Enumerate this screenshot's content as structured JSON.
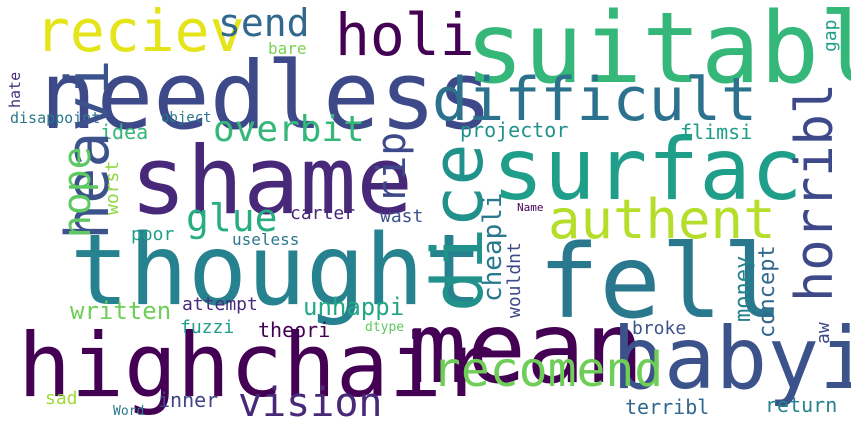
{
  "words": [
    {
      "text": "needless",
      "color": "#3e4989"
    },
    {
      "text": "highchair",
      "color": "#440154"
    },
    {
      "text": "thought",
      "color": "#26828e"
    },
    {
      "text": "suitabl",
      "color": "#35b779"
    },
    {
      "text": "mean",
      "color": "#440154"
    },
    {
      "text": "fell",
      "color": "#2a788e"
    },
    {
      "text": "shame",
      "color": "#482878"
    },
    {
      "text": "surfac",
      "color": "#1f9e89"
    },
    {
      "text": "babyi",
      "color": "#3b528b"
    },
    {
      "text": "difficult",
      "color": "#2c728e"
    },
    {
      "text": "heavi",
      "color": "#3b528b"
    },
    {
      "text": "dice",
      "color": "#21918c"
    },
    {
      "text": "reciev",
      "color": "#e5e419"
    },
    {
      "text": "holi",
      "color": "#440154"
    },
    {
      "text": "authent",
      "color": "#b5de2b"
    },
    {
      "text": "horribl",
      "color": "#3e4989"
    },
    {
      "text": "recomend",
      "color": "#6ece58"
    },
    {
      "text": "vision",
      "color": "#482878"
    },
    {
      "text": "glue",
      "color": "#27ad81"
    },
    {
      "text": "overbit",
      "color": "#35b779"
    },
    {
      "text": "send",
      "color": "#31688e"
    },
    {
      "text": "rip",
      "color": "#3e4989"
    },
    {
      "text": "nope",
      "color": "#5ec962"
    },
    {
      "text": "projector",
      "color": "#21918c"
    },
    {
      "text": "unhappi",
      "color": "#22a884"
    },
    {
      "text": "written",
      "color": "#6ece58"
    },
    {
      "text": "cheapli",
      "color": "#2a788e"
    },
    {
      "text": "money",
      "color": "#26828e"
    },
    {
      "text": "concept",
      "color": "#31688e"
    },
    {
      "text": "terribl",
      "color": "#31688e"
    },
    {
      "text": "theori",
      "color": "#440154"
    },
    {
      "text": "broke",
      "color": "#3b528b"
    },
    {
      "text": "return",
      "color": "#26828e"
    },
    {
      "text": "inner",
      "color": "#414487"
    },
    {
      "text": "attempt",
      "color": "#472d7b"
    },
    {
      "text": "fuzzi",
      "color": "#1f9e89"
    },
    {
      "text": "poor",
      "color": "#1f9e89"
    },
    {
      "text": "carter",
      "color": "#482878"
    },
    {
      "text": "wast",
      "color": "#3b528b"
    },
    {
      "text": "useless",
      "color": "#2a788e"
    },
    {
      "text": "worst",
      "color": "#8fd744"
    },
    {
      "text": "idea",
      "color": "#35b779"
    },
    {
      "text": "flimsi",
      "color": "#1f9e89"
    },
    {
      "text": "wouldnt",
      "color": "#3e4989"
    },
    {
      "text": "bare",
      "color": "#7ad151"
    },
    {
      "text": "gap",
      "color": "#1f9e89"
    },
    {
      "text": "hate",
      "color": "#472d7b"
    },
    {
      "text": "disappoint",
      "color": "#2a788e"
    },
    {
      "text": "object",
      "color": "#2a788e"
    },
    {
      "text": "sad",
      "color": "#a0da39"
    },
    {
      "text": "Word",
      "color": "#2a788e"
    },
    {
      "text": "dtype",
      "color": "#5ec962"
    },
    {
      "text": "Name",
      "color": "#440154"
    },
    {
      "text": "aw",
      "color": "#3e4989"
    }
  ]
}
